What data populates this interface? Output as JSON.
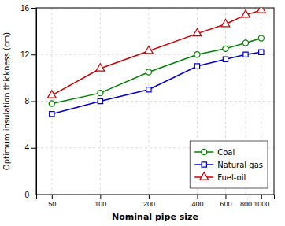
{
  "chart_data": {
    "type": "line",
    "x": [
      50,
      100,
      200,
      400,
      600,
      800,
      1000
    ],
    "series": [
      {
        "name": "Coal",
        "color": "#008000",
        "marker": "circle",
        "values": [
          7.8,
          8.7,
          10.5,
          12.0,
          12.5,
          13.0,
          13.4
        ]
      },
      {
        "name": "Natural gas",
        "color": "#0000cc",
        "marker": "square",
        "values": [
          6.9,
          8.0,
          9.0,
          11.0,
          11.6,
          12.0,
          12.2
        ]
      },
      {
        "name": "Fuel-oil",
        "color": "#cc0000",
        "marker": "triangle",
        "values": [
          8.5,
          10.8,
          12.3,
          13.8,
          14.6,
          15.4,
          15.8
        ]
      }
    ],
    "xlabel": "Nominal pipe size",
    "ylabel": "Optimum insulation thickness (cm)",
    "xlim": [
      40,
      1200
    ],
    "ylim": [
      0,
      16
    ],
    "xticks": [
      50,
      100,
      200,
      400,
      600,
      800,
      1000
    ],
    "yticks": [
      0,
      4,
      8,
      12,
      16
    ],
    "log": "x",
    "grid": true,
    "legend": "lower right"
  }
}
